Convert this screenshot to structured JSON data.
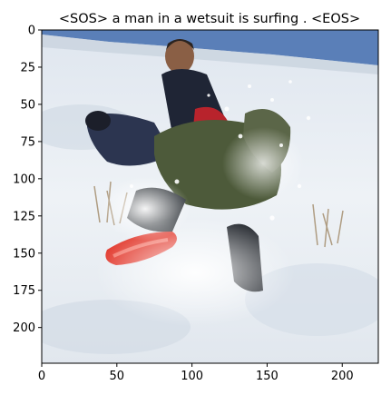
{
  "figure": {
    "title": "<SOS> a man in a wetsuit is surfing . <EOS>",
    "image_subject": "child falling off a red sled on a snowy hillside with another child in the background"
  },
  "axes": {
    "x_ticks": [
      0,
      50,
      100,
      150,
      200
    ],
    "y_ticks": [
      0,
      25,
      50,
      75,
      100,
      125,
      150,
      175,
      200
    ],
    "x_range": [
      0,
      224
    ],
    "y_range": [
      0,
      224
    ],
    "y_inverted": true
  },
  "colors": {
    "sky": "#5a7fb8",
    "snow": "#e8edf3",
    "sled": "#e23a2e",
    "jacket": "#4d5a3a",
    "pants": "#2c3550"
  }
}
